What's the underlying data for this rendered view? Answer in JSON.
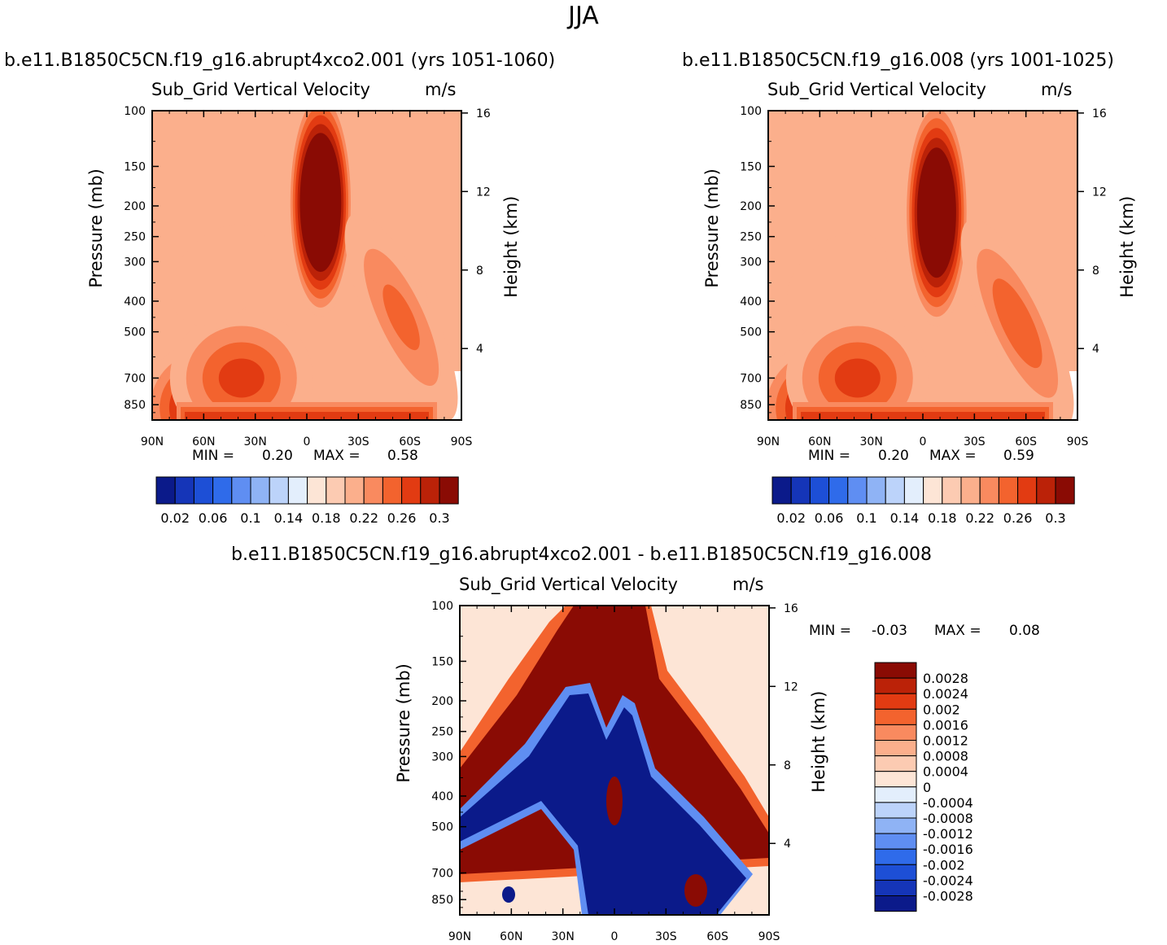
{
  "title": "JJA",
  "panels": [
    {
      "case_label": "b.e11.B1850C5CN.f19_g16.abrupt4xco2.001 (yrs 1051-1060)",
      "variable": "Sub_Grid Vertical Velocity",
      "units": "m/s",
      "ylabel": "Pressure (mb)",
      "ylabel_right": "Height (km)",
      "min_label": "MIN =",
      "min_value": "0.20",
      "max_label": "MAX =",
      "max_value": "0.58"
    },
    {
      "case_label": "b.e11.B1850C5CN.f19_g16.008 (yrs 1001-1025)",
      "variable": "Sub_Grid Vertical Velocity",
      "units": "m/s",
      "ylabel": "Pressure (mb)",
      "ylabel_right": "Height (km)",
      "min_label": "MIN =",
      "min_value": "0.20",
      "max_label": "MAX =",
      "max_value": "0.59"
    },
    {
      "case_label": "b.e11.B1850C5CN.f19_g16.abrupt4xco2.001 - b.e11.B1850C5CN.f19_g16.008",
      "variable": "Sub_Grid Vertical Velocity",
      "units": "m/s",
      "ylabel": "Pressure (mb)",
      "ylabel_right": "Height (km)",
      "min_label": "MIN =",
      "min_value": "-0.03",
      "max_label": "MAX =",
      "max_value": "0.08"
    }
  ],
  "chart_data": [
    {
      "type": "heatmap",
      "title": "Sub_Grid Vertical Velocity",
      "xlabel": "",
      "ylabel": "Pressure (mb)",
      "ylabel_right": "Height (km)",
      "x_ticks": [
        "90N",
        "60N",
        "30N",
        "0",
        "30S",
        "60S",
        "90S"
      ],
      "y_ticks": [
        "100",
        "150",
        "200",
        "250",
        "300",
        "400",
        "500",
        "700",
        "850"
      ],
      "y_right_ticks": [
        "16",
        "12",
        "8",
        "4"
      ],
      "ylim": [
        100,
        950
      ],
      "blobs": [
        {
          "lat": -8,
          "p": 195,
          "value": 0.42
        },
        {
          "lat": 55,
          "p": 870,
          "value": 0.32
        },
        {
          "lat": 38,
          "p": 700,
          "value": 0.27
        },
        {
          "lat": -55,
          "p": 450,
          "value": 0.25
        },
        {
          "lat": 50,
          "p": 330,
          "value": 0.22
        }
      ]
    },
    {
      "type": "heatmap",
      "title": "Sub_Grid Vertical Velocity",
      "xlabel": "",
      "ylabel": "Pressure (mb)",
      "ylabel_right": "Height (km)",
      "x_ticks": [
        "90N",
        "60N",
        "30N",
        "0",
        "30S",
        "60S",
        "90S"
      ],
      "y_ticks": [
        "100",
        "150",
        "200",
        "250",
        "300",
        "400",
        "500",
        "700",
        "850"
      ],
      "y_right_ticks": [
        "16",
        "12",
        "8",
        "4"
      ],
      "ylim": [
        100,
        950
      ],
      "blobs": [
        {
          "lat": -8,
          "p": 210,
          "value": 0.4
        },
        {
          "lat": 55,
          "p": 870,
          "value": 0.32
        },
        {
          "lat": 38,
          "p": 700,
          "value": 0.27
        },
        {
          "lat": -55,
          "p": 470,
          "value": 0.26
        },
        {
          "lat": 50,
          "p": 350,
          "value": 0.22
        }
      ]
    },
    {
      "type": "heatmap",
      "title": "Sub_Grid Vertical Velocity",
      "xlabel": "",
      "ylabel": "Pressure (mb)",
      "ylabel_right": "Height (km)",
      "x_ticks": [
        "90N",
        "60N",
        "30N",
        "0",
        "30S",
        "60S",
        "90S"
      ],
      "y_ticks": [
        "100",
        "150",
        "200",
        "250",
        "300",
        "400",
        "500",
        "700",
        "850"
      ],
      "y_right_ticks": [
        "16",
        "12",
        "8",
        "4"
      ],
      "ylim": [
        100,
        950
      ],
      "pattern": "positive upper band, negative mid-level band near tropics"
    }
  ],
  "colorbar_main": {
    "labels": [
      "0.02",
      "0.06",
      "0.1",
      "0.14",
      "0.18",
      "0.22",
      "0.26",
      "0.3"
    ],
    "colors": [
      "#0b1a8a",
      "#1535b8",
      "#1d4fd6",
      "#2f6bea",
      "#5f8ef2",
      "#8fb3f5",
      "#bcd3fa",
      "#e3eefc",
      "#fde5d6",
      "#fccbb2",
      "#fbaf8c",
      "#f98a5f",
      "#f3632e",
      "#e23b12",
      "#bb2208",
      "#8a0b04"
    ]
  },
  "colorbar_diff": {
    "labels": [
      "0.0028",
      "0.0024",
      "0.002",
      "0.0016",
      "0.0012",
      "0.0008",
      "0.0004",
      "0",
      "-0.0004",
      "-0.0008",
      "-0.0012",
      "-0.0016",
      "-0.002",
      "-0.0024",
      "-0.0028"
    ],
    "colors": [
      "#8a0b04",
      "#bb2208",
      "#e23b12",
      "#f3632e",
      "#f98a5f",
      "#fbaf8c",
      "#fccbb2",
      "#fde5d6",
      "#e3eefc",
      "#bcd3fa",
      "#8fb3f5",
      "#5f8ef2",
      "#2f6bea",
      "#1d4fd6",
      "#1535b8",
      "#0b1a8a"
    ]
  }
}
